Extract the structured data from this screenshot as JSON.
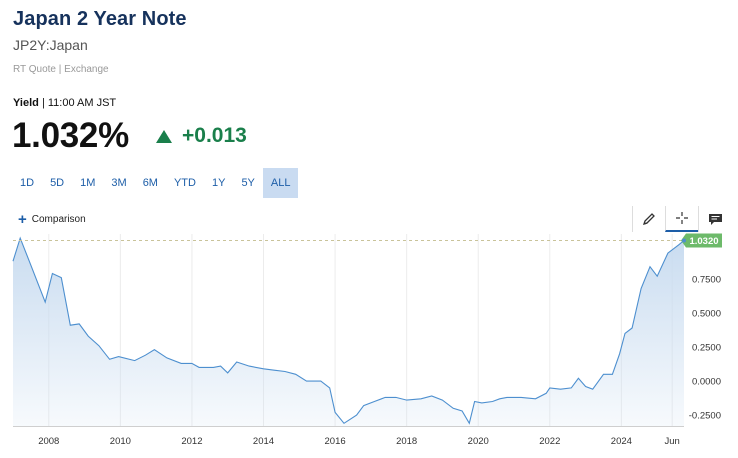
{
  "header": {
    "title": "Japan 2 Year Note",
    "symbol": "JP2Y:Japan",
    "rt_quote": "RT Quote | Exchange",
    "yield_label": "Yield",
    "yield_time": " | 11:00 AM JST",
    "price": "1.032%",
    "change": "+0.013",
    "change_color": "#1a7f4b"
  },
  "ranges": {
    "items": [
      "1D",
      "5D",
      "1M",
      "3M",
      "6M",
      "YTD",
      "1Y",
      "5Y",
      "ALL"
    ],
    "selected": "ALL"
  },
  "toolbar": {
    "comparison_label": "Comparison",
    "draw_icon": "pencil-icon",
    "crosshair_icon": "crosshair-icon",
    "events_icon": "message-icon"
  },
  "chart_data": {
    "type": "area",
    "x_tick_labels": [
      "2008",
      "2010",
      "2012",
      "2014",
      "2016",
      "2018",
      "2020",
      "2022",
      "2024",
      "Jun"
    ],
    "y_tick_labels": [
      "-0.2500",
      "0.0000",
      "0.2500",
      "0.5000",
      "0.7500"
    ],
    "ylim": [
      -0.33,
      1.08
    ],
    "last_value_label": "1.0320",
    "last_value": 1.032,
    "line_color": "#4d8fcf",
    "fill_color": "#c9dcf0",
    "last_badge_color": "#6dba6a",
    "grid": "vertical",
    "points": [
      [
        2007.0,
        0.88
      ],
      [
        2007.2,
        1.05
      ],
      [
        2007.5,
        0.85
      ],
      [
        2007.9,
        0.58
      ],
      [
        2008.1,
        0.79
      ],
      [
        2008.35,
        0.76
      ],
      [
        2008.6,
        0.41
      ],
      [
        2008.85,
        0.42
      ],
      [
        2009.1,
        0.33
      ],
      [
        2009.4,
        0.26
      ],
      [
        2009.7,
        0.16
      ],
      [
        2009.95,
        0.18
      ],
      [
        2010.4,
        0.15
      ],
      [
        2010.7,
        0.19
      ],
      [
        2010.95,
        0.23
      ],
      [
        2011.3,
        0.17
      ],
      [
        2011.7,
        0.13
      ],
      [
        2012.0,
        0.13
      ],
      [
        2012.2,
        0.1
      ],
      [
        2012.6,
        0.1
      ],
      [
        2012.8,
        0.11
      ],
      [
        2013.0,
        0.06
      ],
      [
        2013.25,
        0.14
      ],
      [
        2013.6,
        0.11
      ],
      [
        2014.0,
        0.09
      ],
      [
        2014.3,
        0.08
      ],
      [
        2014.6,
        0.07
      ],
      [
        2014.9,
        0.05
      ],
      [
        2015.2,
        0.0
      ],
      [
        2015.6,
        0.0
      ],
      [
        2015.85,
        -0.05
      ],
      [
        2016.0,
        -0.23
      ],
      [
        2016.25,
        -0.31
      ],
      [
        2016.6,
        -0.25
      ],
      [
        2016.8,
        -0.18
      ],
      [
        2017.1,
        -0.15
      ],
      [
        2017.4,
        -0.12
      ],
      [
        2017.7,
        -0.12
      ],
      [
        2018.0,
        -0.14
      ],
      [
        2018.4,
        -0.13
      ],
      [
        2018.7,
        -0.11
      ],
      [
        2019.0,
        -0.14
      ],
      [
        2019.3,
        -0.2
      ],
      [
        2019.55,
        -0.22
      ],
      [
        2019.75,
        -0.31
      ],
      [
        2019.9,
        -0.15
      ],
      [
        2020.1,
        -0.16
      ],
      [
        2020.4,
        -0.15
      ],
      [
        2020.6,
        -0.13
      ],
      [
        2020.8,
        -0.12
      ],
      [
        2021.2,
        -0.12
      ],
      [
        2021.6,
        -0.13
      ],
      [
        2021.9,
        -0.09
      ],
      [
        2022.0,
        -0.05
      ],
      [
        2022.3,
        -0.06
      ],
      [
        2022.6,
        -0.05
      ],
      [
        2022.8,
        0.02
      ],
      [
        2023.0,
        -0.04
      ],
      [
        2023.2,
        -0.06
      ],
      [
        2023.5,
        0.05
      ],
      [
        2023.75,
        0.05
      ],
      [
        2023.95,
        0.2
      ],
      [
        2024.1,
        0.35
      ],
      [
        2024.3,
        0.39
      ],
      [
        2024.55,
        0.68
      ],
      [
        2024.8,
        0.84
      ],
      [
        2025.0,
        0.77
      ],
      [
        2025.3,
        0.94
      ],
      [
        2025.6,
        1.0
      ],
      [
        2025.75,
        1.032
      ]
    ],
    "x_range": [
      2007.0,
      2025.75
    ]
  }
}
